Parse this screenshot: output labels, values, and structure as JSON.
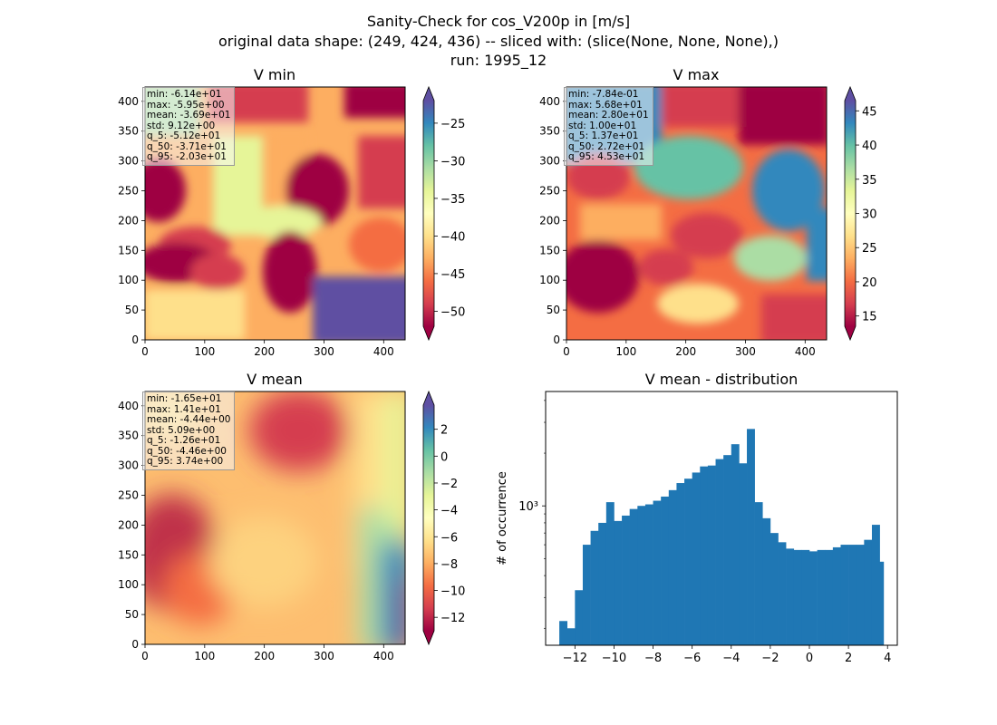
{
  "figure": {
    "title_line1": "Sanity-Check for cos_V200p in [m/s]",
    "title_line2": "original data shape: (249, 424, 436) -- sliced with: (slice(None, None, None),)",
    "title_line3": "run: 1995_12"
  },
  "chart_data": [
    {
      "type": "heatmap",
      "title": "V min",
      "colormap": "Spectral",
      "xlim": [
        0,
        436
      ],
      "ylim": [
        0,
        424
      ],
      "xticks": [
        "0",
        "100",
        "200",
        "300",
        "400"
      ],
      "yticks": [
        "0",
        "50",
        "100",
        "150",
        "200",
        "250",
        "300",
        "350",
        "400"
      ],
      "colorbar": {
        "range": [
          -52,
          -22
        ],
        "ticks": [
          "−50",
          "−45",
          "−40",
          "−35",
          "−30",
          "−25"
        ],
        "extend": "both"
      },
      "stats": [
        "min: -6.14e+01",
        "max: -5.95e+00",
        "mean: -3.69e+01",
        "std: 9.12e+00",
        "q_5: -5.12e+01",
        "q_50: -3.71e+01",
        "q_95: -2.03e+01"
      ]
    },
    {
      "type": "heatmap",
      "title": "V max",
      "colormap": "Spectral",
      "xlim": [
        0,
        436
      ],
      "ylim": [
        0,
        424
      ],
      "xticks": [
        "0",
        "100",
        "200",
        "300",
        "400"
      ],
      "yticks": [
        "0",
        "50",
        "100",
        "150",
        "200",
        "250",
        "300",
        "350",
        "400"
      ],
      "colorbar": {
        "range": [
          13.5,
          46.5
        ],
        "ticks": [
          "15",
          "20",
          "25",
          "30",
          "35",
          "40",
          "45"
        ],
        "extend": "both"
      },
      "stats": [
        "min: -7.84e-01",
        "max: 5.68e+01",
        "mean: 2.80e+01",
        "std: 1.00e+01",
        "q_5: 1.37e+01",
        "q_50: 2.72e+01",
        "q_95: 4.53e+01"
      ]
    },
    {
      "type": "heatmap",
      "title": "V mean",
      "colormap": "Spectral",
      "xlim": [
        0,
        436
      ],
      "ylim": [
        0,
        424
      ],
      "xticks": [
        "0",
        "100",
        "200",
        "300",
        "400"
      ],
      "yticks": [
        "0",
        "50",
        "100",
        "150",
        "200",
        "250",
        "300",
        "350",
        "400"
      ],
      "colorbar": {
        "range": [
          -13,
          3.8
        ],
        "ticks": [
          "−12",
          "−10",
          "−8",
          "−6",
          "−4",
          "−2",
          "0",
          "2"
        ],
        "extend": "both"
      },
      "stats": [
        "min: -1.65e+01",
        "max: 1.41e+01",
        "mean: -4.44e+00",
        "std: 5.09e+00",
        "q_5: -1.26e+01",
        "q_50: -4.46e+00",
        "q_95: 3.74e+00"
      ]
    },
    {
      "type": "bar",
      "title": "V mean - distribution",
      "ylabel": "# of occurrence",
      "yscale": "log",
      "xlim": [
        -13.5,
        4.5
      ],
      "ylim": [
        160,
        4500
      ],
      "xticks": [
        "−12",
        "−10",
        "−8",
        "−6",
        "−4",
        "−2",
        "0",
        "2",
        "4"
      ],
      "yticks": [
        "10³"
      ],
      "color": "#1f77b4",
      "x": [
        -12.6,
        -12.2,
        -11.8,
        -11.4,
        -11.0,
        -10.6,
        -10.2,
        -9.8,
        -9.4,
        -9.0,
        -8.6,
        -8.2,
        -7.8,
        -7.4,
        -7.0,
        -6.6,
        -6.2,
        -5.8,
        -5.4,
        -5.0,
        -4.6,
        -4.2,
        -3.8,
        -3.4,
        -3.0,
        -2.6,
        -2.2,
        -1.8,
        -1.4,
        -1.0,
        -0.6,
        -0.2,
        0.2,
        0.6,
        1.0,
        1.4,
        1.8,
        2.2,
        2.6,
        3.0,
        3.4,
        3.6
      ],
      "values": [
        220,
        200,
        330,
        600,
        720,
        800,
        1050,
        820,
        880,
        960,
        1000,
        1020,
        1070,
        1130,
        1230,
        1350,
        1430,
        1550,
        1680,
        1700,
        1850,
        1950,
        2250,
        1750,
        2750,
        1050,
        850,
        700,
        620,
        570,
        560,
        560,
        550,
        560,
        560,
        580,
        600,
        600,
        600,
        640,
        780,
        480
      ]
    }
  ]
}
